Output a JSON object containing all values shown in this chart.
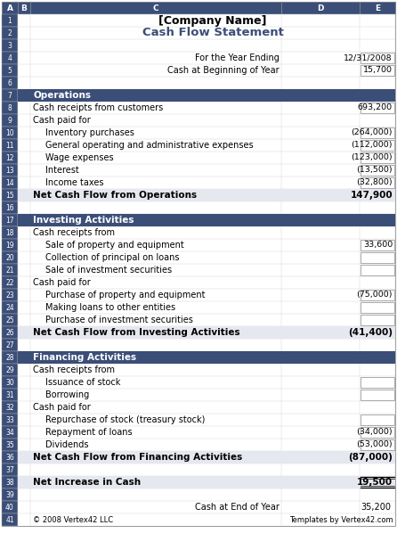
{
  "title": "[Company Name]",
  "subtitle": "Cash Flow Statement",
  "header_label1": "For the Year Ending",
  "header_val1": "12/31/2008",
  "header_label2": "Cash at Beginning of Year",
  "header_val2": "15,700",
  "section_ops": "Operations",
  "ops_rows": [
    {
      "label": "Cash receipts from customers",
      "value": "693,200",
      "indent": 0,
      "bold_val": false,
      "box": true,
      "net": false
    },
    {
      "label": "Cash paid for",
      "value": "",
      "indent": 0,
      "bold_val": false,
      "box": false,
      "net": false
    },
    {
      "label": "Inventory purchases",
      "value": "(264,000)",
      "indent": 1,
      "bold_val": false,
      "box": true,
      "net": false
    },
    {
      "label": "General operating and administrative expenses",
      "value": "(112,000)",
      "indent": 1,
      "bold_val": false,
      "box": true,
      "net": false
    },
    {
      "label": "Wage expenses",
      "value": "(123,000)",
      "indent": 1,
      "bold_val": false,
      "box": true,
      "net": false
    },
    {
      "label": "Interest",
      "value": "(13,500)",
      "indent": 1,
      "bold_val": false,
      "box": true,
      "net": false
    },
    {
      "label": "Income taxes",
      "value": "(32,800)",
      "indent": 1,
      "bold_val": false,
      "box": true,
      "net": false
    },
    {
      "label": "Net Cash Flow from Operations",
      "value": "147,900",
      "indent": 0,
      "bold_val": true,
      "box": false,
      "net": true
    }
  ],
  "section_inv": "Investing Activities",
  "inv_rows": [
    {
      "label": "Cash receipts from",
      "value": "",
      "indent": 0,
      "bold_val": false,
      "box": false,
      "net": false
    },
    {
      "label": "Sale of property and equipment",
      "value": "33,600",
      "indent": 1,
      "bold_val": false,
      "box": true,
      "net": false
    },
    {
      "label": "Collection of principal on loans",
      "value": "",
      "indent": 1,
      "bold_val": false,
      "box": true,
      "net": false
    },
    {
      "label": "Sale of investment securities",
      "value": "",
      "indent": 1,
      "bold_val": false,
      "box": true,
      "net": false
    },
    {
      "label": "Cash paid for",
      "value": "",
      "indent": 0,
      "bold_val": false,
      "box": false,
      "net": false
    },
    {
      "label": "Purchase of property and equipment",
      "value": "(75,000)",
      "indent": 1,
      "bold_val": false,
      "box": true,
      "net": false
    },
    {
      "label": "Making loans to other entities",
      "value": "",
      "indent": 1,
      "bold_val": false,
      "box": true,
      "net": false
    },
    {
      "label": "Purchase of investment securities",
      "value": "",
      "indent": 1,
      "bold_val": false,
      "box": true,
      "net": false
    },
    {
      "label": "Net Cash Flow from Investing Activities",
      "value": "(41,400)",
      "indent": 0,
      "bold_val": true,
      "box": false,
      "net": true
    }
  ],
  "section_fin": "Financing Activities",
  "fin_rows": [
    {
      "label": "Cash receipts from",
      "value": "",
      "indent": 0,
      "bold_val": false,
      "box": false,
      "net": false
    },
    {
      "label": "Issuance of stock",
      "value": "",
      "indent": 1,
      "bold_val": false,
      "box": true,
      "net": false
    },
    {
      "label": "Borrowing",
      "value": "",
      "indent": 1,
      "bold_val": false,
      "box": true,
      "net": false
    },
    {
      "label": "Cash paid for",
      "value": "",
      "indent": 0,
      "bold_val": false,
      "box": false,
      "net": false
    },
    {
      "label": "Repurchase of stock (treasury stock)",
      "value": "",
      "indent": 1,
      "bold_val": false,
      "box": true,
      "net": false
    },
    {
      "label": "Repayment of loans",
      "value": "(34,000)",
      "indent": 1,
      "bold_val": false,
      "box": true,
      "net": false
    },
    {
      "label": "Dividends",
      "value": "(53,000)",
      "indent": 1,
      "bold_val": false,
      "box": true,
      "net": false
    },
    {
      "label": "Net Cash Flow from Financing Activities",
      "value": "(87,000)",
      "indent": 0,
      "bold_val": true,
      "box": false,
      "net": true
    }
  ],
  "net_increase_label": "Net Increase in Cash",
  "net_increase_value": "19,500",
  "footer_label1": "Cash at End of Year",
  "footer_val1": "35,200",
  "footer_copy": "© 2008 Vertex42 LLC",
  "footer_templates": "Templates by Vertex42.com",
  "col_header_bg": "#3B4E78",
  "col_header_fg": "#FFFFFF",
  "section_bg": "#3B4E78",
  "section_fg": "#FFFFFF",
  "net_row_bg": "#E6E8F0",
  "title_color": "#000000",
  "subtitle_color": "#3B4E78"
}
